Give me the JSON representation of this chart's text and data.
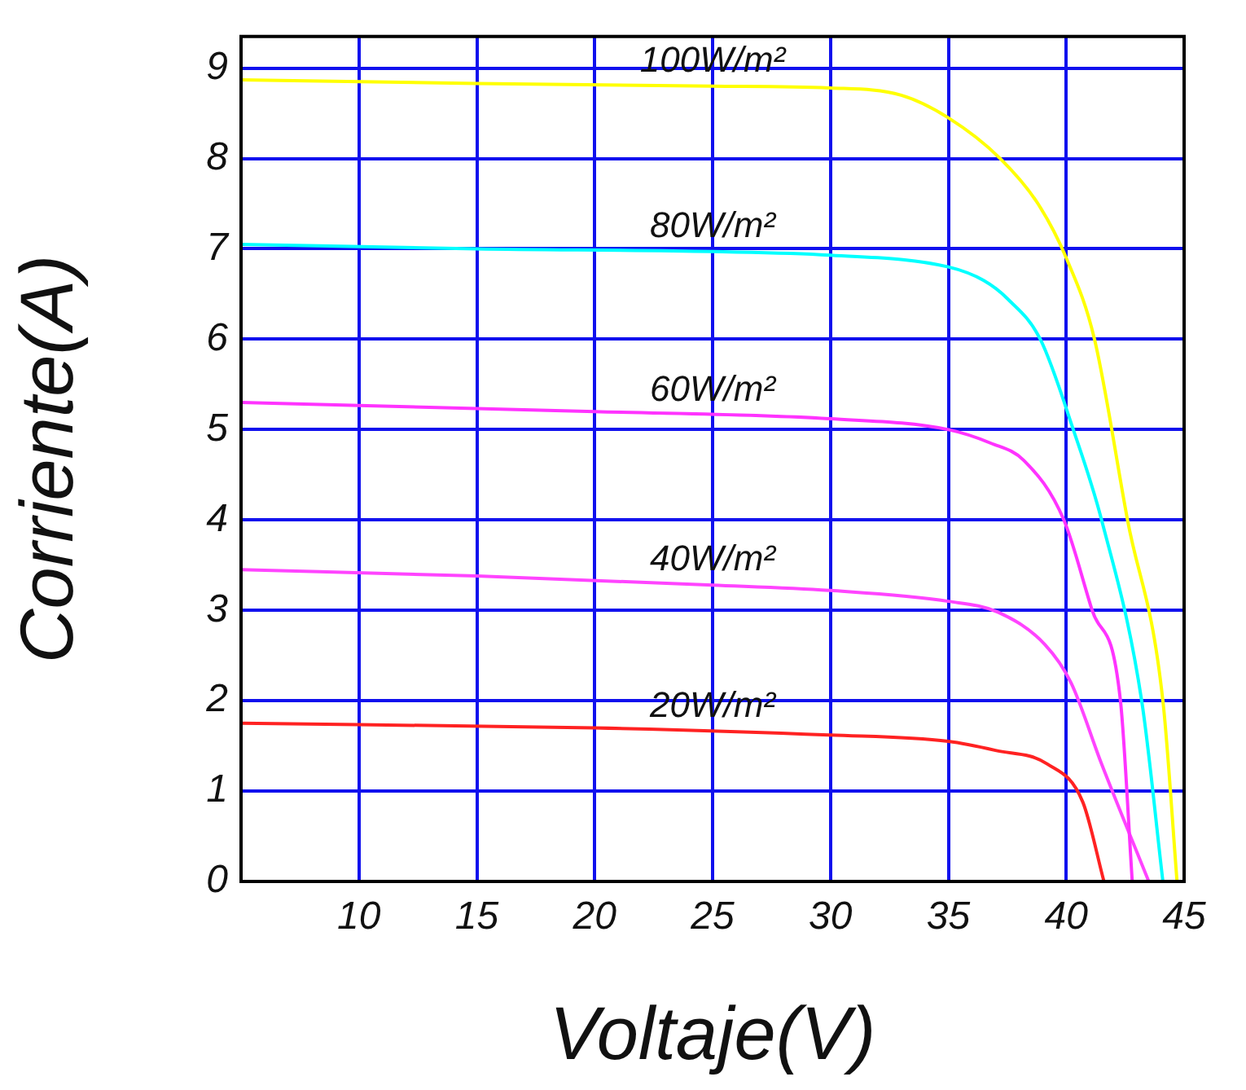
{
  "chart_data": {
    "type": "line",
    "xlabel": "Voltaje(V)",
    "ylabel": "Corriente(A)",
    "xlim": [
      5,
      45
    ],
    "xticks": [
      10,
      15,
      20,
      25,
      30,
      35,
      40,
      45
    ],
    "ylim": [
      0,
      9.35
    ],
    "yticks": [
      0,
      1,
      2,
      3,
      4,
      5,
      6,
      7,
      8,
      9
    ],
    "grid": true,
    "legend": false,
    "marker": "none",
    "line_style": "solid",
    "series": [
      {
        "name": "100W/m²",
        "color": "#ffff00",
        "x": [
          5,
          15,
          25,
          30,
          33,
          35,
          37.2,
          38.8,
          40,
          41.2,
          42.6,
          44.1,
          44.7
        ],
        "values": [
          8.87,
          8.83,
          8.8,
          8.78,
          8.7,
          8.45,
          8.0,
          7.5,
          6.9,
          6.0,
          4.0,
          2.0,
          0
        ]
      },
      {
        "name": "80W/m²",
        "color": "#00ffff",
        "x": [
          5,
          15,
          25,
          30,
          35,
          36.5,
          37.5,
          38.9,
          40.3,
          41.5,
          43.2,
          44.1
        ],
        "values": [
          7.05,
          7.0,
          6.97,
          6.93,
          6.8,
          6.65,
          6.45,
          6.0,
          5.0,
          4.0,
          2.0,
          0
        ]
      },
      {
        "name": "60W/m²",
        "color": "#ff33ff",
        "x": [
          5,
          20,
          30,
          35,
          36.8,
          38.2,
          39.9,
          41.1,
          42.3,
          42.8
        ],
        "values": [
          5.3,
          5.2,
          5.12,
          5.0,
          4.85,
          4.66,
          4.0,
          3.0,
          2.0,
          0
        ]
      },
      {
        "name": "40W/m²",
        "color": "#ff44ff",
        "x": [
          5,
          15,
          25,
          30,
          35,
          37.1,
          39.1,
          40.2,
          41.5,
          43.5
        ],
        "values": [
          3.45,
          3.38,
          3.28,
          3.22,
          3.1,
          2.98,
          2.62,
          2.2,
          1.3,
          0
        ]
      },
      {
        "name": "20W/m²",
        "color": "#ff2222",
        "x": [
          5,
          20,
          30,
          35,
          37,
          39.2,
          40.7,
          41.6
        ],
        "values": [
          1.75,
          1.7,
          1.62,
          1.55,
          1.45,
          1.3,
          0.88,
          0
        ]
      }
    ]
  }
}
